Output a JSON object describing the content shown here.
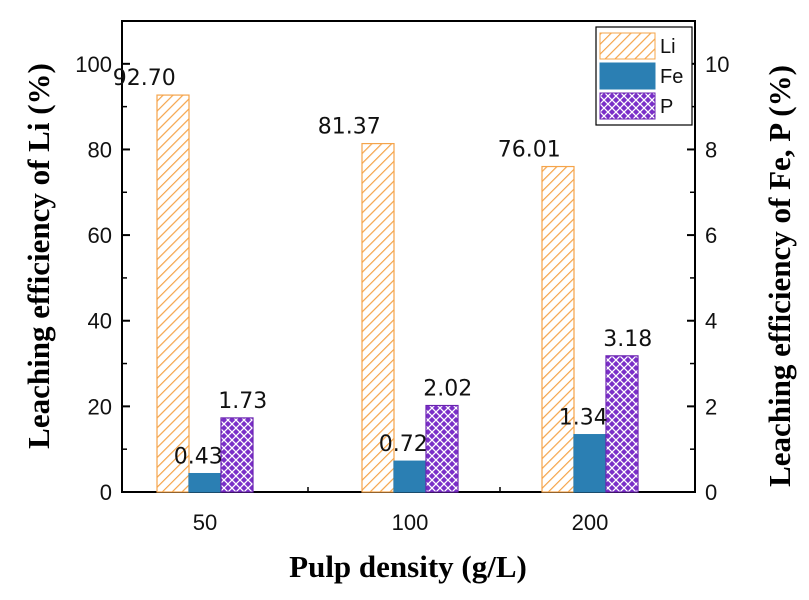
{
  "chart_data": {
    "type": "bar",
    "categories": [
      "50",
      "100",
      "200"
    ],
    "xlabel": "Pulp density (g/L)",
    "ylabel": "Leaching efficiency of Li (%)",
    "y2label": "Leaching efficiency of Fe, P (%)",
    "ylim": [
      0,
      110
    ],
    "y2lim": [
      0,
      11
    ],
    "yticks": [
      "0",
      "20",
      "40",
      "60",
      "80",
      "100"
    ],
    "y2ticks": [
      "0",
      "2",
      "4",
      "6",
      "8",
      "10"
    ],
    "legend_position": "top-right",
    "series": [
      {
        "name": "Li",
        "axis": "left",
        "color": "#F5A44A",
        "pattern": "diagonal-hatch",
        "values": [
          92.7,
          81.37,
          76.01
        ],
        "labels": [
          "92.70",
          "81.37",
          "76.01"
        ]
      },
      {
        "name": "Fe",
        "axis": "right",
        "color": "#2B7FB3",
        "pattern": "solid",
        "values": [
          0.43,
          0.72,
          1.34
        ],
        "labels": [
          "0.43",
          "0.72",
          "1.34"
        ]
      },
      {
        "name": "P",
        "axis": "right",
        "color": "#7A2FC8",
        "pattern": "crosshatch",
        "values": [
          1.73,
          2.02,
          3.18
        ],
        "labels": [
          "1.73",
          "2.02",
          "3.18"
        ]
      }
    ]
  }
}
